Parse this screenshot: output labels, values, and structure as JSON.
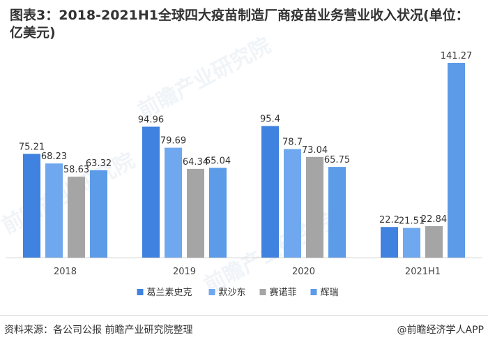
{
  "title": "图表3：2018-2021H1全球四大疫苗制造厂商疫苗业务营业收入状况(单位：亿美元)",
  "footer": {
    "source": "资料来源：各公司公报 前瞻产业研究院整理",
    "credit": "@前瞻经济学人APP"
  },
  "watermark": "前瞻产业研究院",
  "chart_data": {
    "type": "bar",
    "categories": [
      "2018",
      "2019",
      "2020",
      "2021H1"
    ],
    "series": [
      {
        "name": "葛兰素史克",
        "color": "#3f82df",
        "values": [
          75.21,
          94.96,
          95.4,
          22.2
        ],
        "labels": [
          "75.21",
          "94.96",
          "95.4",
          "22.2"
        ]
      },
      {
        "name": "默沙东",
        "color": "#6fa8ee",
        "values": [
          68.23,
          79.69,
          78.7,
          21.51
        ],
        "labels": [
          "68.23",
          "79.69",
          "78.7",
          "21.51"
        ]
      },
      {
        "name": "赛诺菲",
        "color": "#a5a5a5",
        "values": [
          58.63,
          64.34,
          73.04,
          22.84
        ],
        "labels": [
          "58.63",
          "64.34",
          "73.04",
          "22.84"
        ]
      },
      {
        "name": "辉瑞",
        "color": "#5b9be8",
        "values": [
          63.32,
          65.04,
          65.75,
          141.27
        ],
        "labels": [
          "63.32",
          "65.04",
          "65.75",
          "141.27"
        ]
      }
    ],
    "ylim": [
      0,
      150
    ],
    "legend": "bottom-center",
    "grid": false
  }
}
